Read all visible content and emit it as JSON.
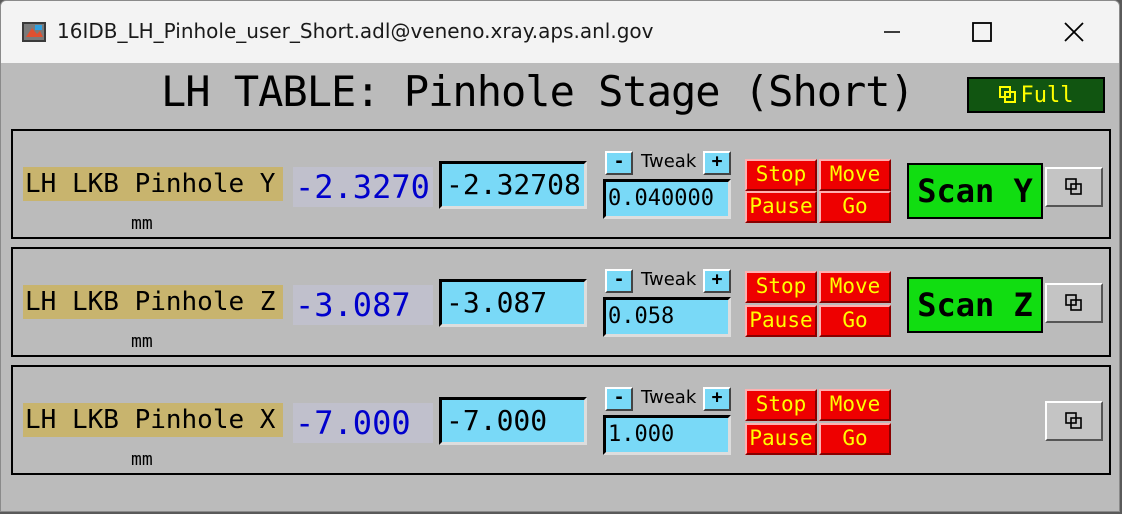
{
  "window": {
    "title": "16IDB_LH_Pinhole_user_Short.adl@veneno.xray.aps.anl.gov",
    "buttons": [
      "minimize-icon",
      "maximize-icon",
      "close-icon"
    ]
  },
  "header": {
    "title": "LH TABLE: Pinhole Stage (Short)",
    "full_label": "Full"
  },
  "colors": {
    "background": "#bbbbbb",
    "label_bg": "#c8b46e",
    "readback_text": "#0000cc",
    "entry_bg": "#79d9f7",
    "stop_bg": "#ee0000",
    "stop_text": "#ffff00",
    "scan_bg": "#11dd11",
    "full_bg": "#115511"
  },
  "rows": [
    {
      "label": "LH LKB Pinhole Y",
      "units": "mm",
      "readback": "-2.3270",
      "setpoint": "-2.32708",
      "tweak_label": "Tweak",
      "tweak_minus": "-",
      "tweak_plus": "+",
      "tweak_value": "0.040000",
      "stop": "Stop",
      "move": "Move",
      "pause": "Pause",
      "go": "Go",
      "scan": "Scan Y"
    },
    {
      "label": "LH LKB Pinhole Z",
      "units": "mm",
      "readback": "-3.087",
      "setpoint": "-3.087",
      "tweak_label": "Tweak",
      "tweak_minus": "-",
      "tweak_plus": "+",
      "tweak_value": "0.058",
      "stop": "Stop",
      "move": "Move",
      "pause": "Pause",
      "go": "Go",
      "scan": "Scan Z"
    },
    {
      "label": "LH LKB Pinhole X",
      "units": "mm",
      "readback": "-7.000",
      "setpoint": "-7.000",
      "tweak_label": "Tweak",
      "tweak_minus": "-",
      "tweak_plus": "+",
      "tweak_value": "1.000",
      "stop": "Stop",
      "move": "Move",
      "pause": "Pause",
      "go": "Go"
    }
  ]
}
